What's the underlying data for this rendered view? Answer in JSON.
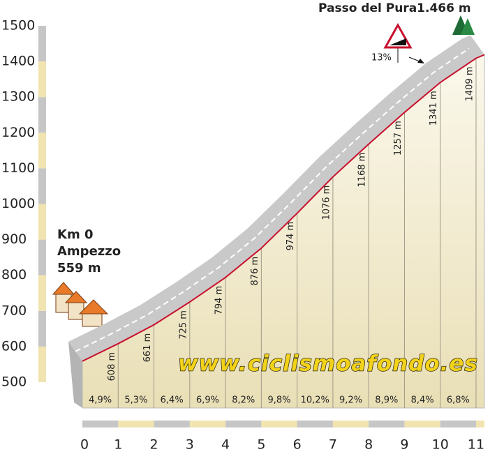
{
  "chart_data": {
    "type": "profile",
    "x": [
      0,
      1,
      2,
      3,
      4,
      5,
      6,
      7,
      8,
      9,
      10,
      11
    ],
    "values": [
      559,
      608,
      661,
      725,
      794,
      876,
      974,
      1076,
      1168,
      1257,
      1341,
      1409
    ],
    "value_labels": [
      null,
      "608 m",
      "661 m",
      "725 m",
      "794 m",
      "876 m",
      "974 m",
      "1076 m",
      "1168 m",
      "1257 m",
      "1341 m",
      "1409 m"
    ],
    "gradients": [
      4.9,
      5.3,
      6.4,
      6.9,
      8.2,
      9.8,
      10.2,
      9.2,
      8.9,
      8.4,
      6.8
    ],
    "gradient_labels": [
      "4,9%",
      "5,3%",
      "6,4%",
      "6,9%",
      "8,2%",
      "9,8%",
      "10,2%",
      "9,2%",
      "8,9%",
      "8,4%",
      "6,8%"
    ],
    "color": "#c8102e",
    "xlim": [
      0,
      11
    ],
    "xticks": [
      0,
      1,
      2,
      3,
      4,
      5,
      6,
      7,
      8,
      9,
      10,
      11
    ],
    "ylim": [
      500,
      1500
    ],
    "yticks": [
      500,
      600,
      700,
      800,
      900,
      1000,
      1100,
      1200,
      1300,
      1400,
      1500
    ],
    "start": [
      "Km 0",
      "Ampezzo",
      "559 m"
    ],
    "summit": "Passo del Pura1.466 m",
    "sign_label": "13%",
    "watermark": "www.ciclismoafondo.es"
  }
}
